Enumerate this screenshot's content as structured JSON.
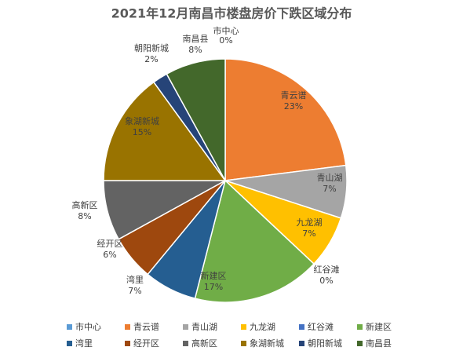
{
  "chart_data": {
    "type": "pie",
    "title": "2021年12月南昌市楼盘房价下跌区域分布",
    "categories": [
      "市中心",
      "青云谱",
      "青山湖",
      "九龙湖",
      "红谷滩",
      "新建区",
      "湾里",
      "经开区",
      "高新区",
      "象湖新城",
      "朝阳新城",
      "南昌县"
    ],
    "values": [
      0,
      23,
      7,
      7,
      0,
      17,
      7,
      6,
      8,
      15,
      2,
      8
    ],
    "value_labels": [
      "0%",
      "23%",
      "7%",
      "7%",
      "0%",
      "17%",
      "7%",
      "6%",
      "8%",
      "15%",
      "2%",
      "8%"
    ],
    "colors": [
      "#5b9bd5",
      "#ed7d31",
      "#a5a5a5",
      "#ffc000",
      "#4472c4",
      "#70ad47",
      "#255e91",
      "#9e480e",
      "#636363",
      "#997300",
      "#264478",
      "#43682b"
    ],
    "legend": "bottom"
  }
}
